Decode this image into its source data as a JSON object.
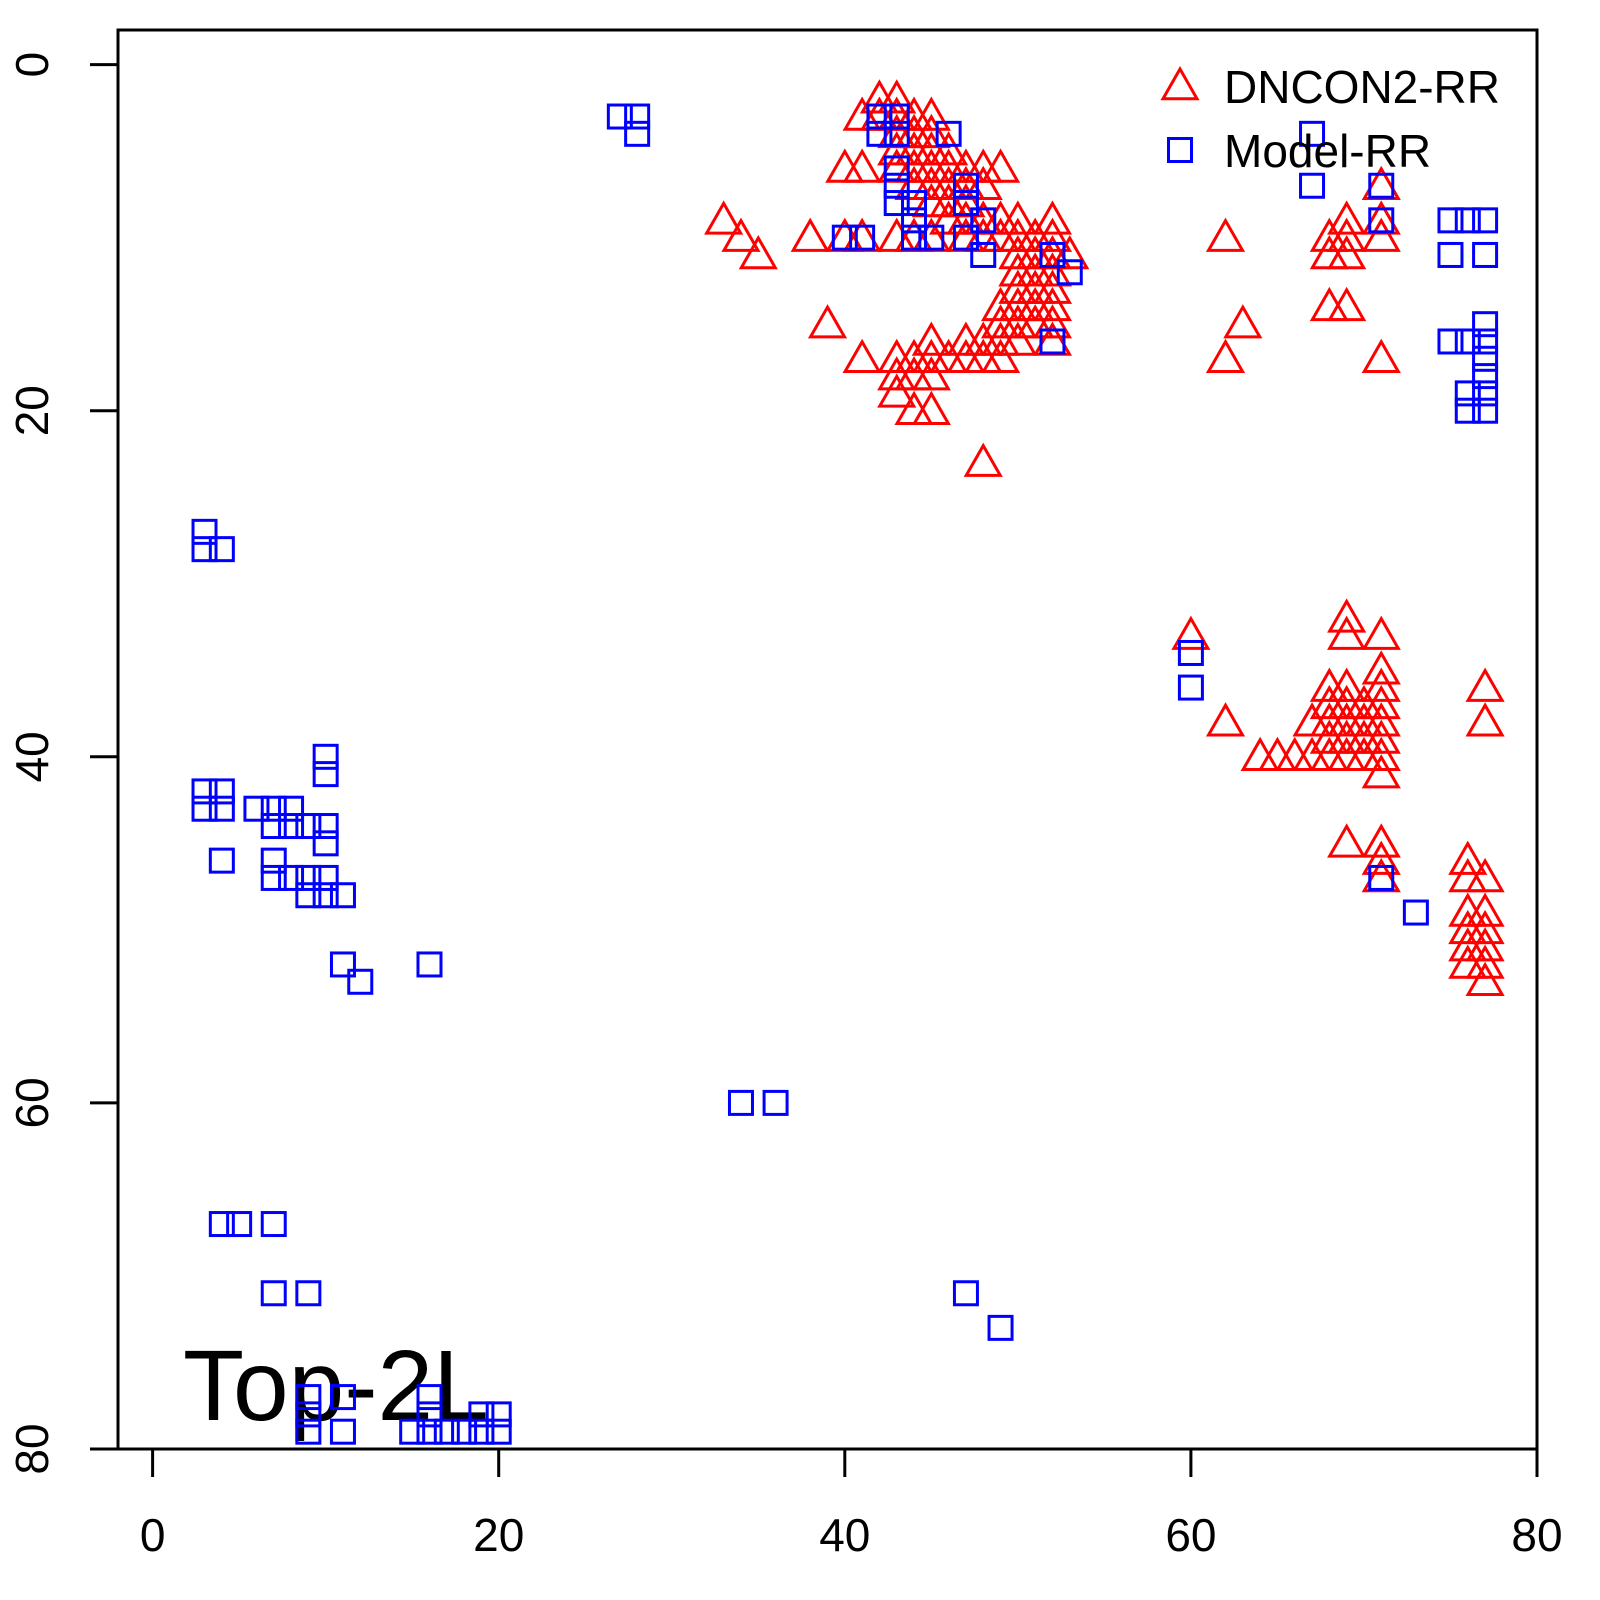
{
  "chart_data": {
    "type": "scatter",
    "annotation": "Top-2L",
    "xlim": [
      -2,
      80
    ],
    "ylim": [
      -2,
      80
    ],
    "y_reversed": true,
    "xticks": [
      0,
      20,
      40,
      60,
      80
    ],
    "yticks": [
      0,
      20,
      40,
      60,
      80
    ],
    "legend": "topright",
    "series": [
      {
        "name": "DNCON2-RR",
        "color": "#ff0000",
        "marker": "triangle",
        "x": [
          42,
          43,
          41,
          42,
          43,
          44,
          45,
          43,
          44,
          45,
          43,
          44,
          45,
          46,
          40,
          41,
          43,
          44,
          45,
          46,
          47,
          48,
          49,
          44,
          45,
          46,
          47,
          48,
          45,
          46,
          47,
          33,
          46,
          47,
          48,
          49,
          50,
          52,
          34,
          38,
          40,
          41,
          43,
          44,
          45,
          47,
          48,
          49,
          50,
          51,
          52,
          35,
          50,
          51,
          52,
          53,
          50,
          51,
          52,
          50,
          51,
          52,
          49,
          50,
          51,
          52,
          39,
          49,
          50,
          51,
          52,
          45,
          47,
          48,
          49,
          50,
          52,
          41,
          43,
          44,
          45,
          46,
          47,
          48,
          49,
          43,
          44,
          45,
          43,
          44,
          45,
          48,
          62,
          63,
          62,
          68,
          69,
          69,
          68,
          69,
          71,
          71,
          71,
          68,
          69,
          71,
          60,
          62,
          69,
          69,
          71,
          71,
          71,
          68,
          69,
          68,
          69,
          70,
          71,
          67,
          68,
          69,
          70,
          71,
          68,
          69,
          70,
          71,
          64,
          65,
          66,
          67,
          68,
          69,
          70,
          71,
          71,
          77,
          77,
          69,
          71,
          71,
          71,
          76,
          76,
          77,
          76,
          77,
          76,
          77,
          76,
          77,
          76,
          77,
          77
        ],
        "y": [
          2,
          2,
          3,
          3,
          3,
          3,
          3,
          4,
          4,
          4,
          5,
          5,
          5,
          5,
          6,
          6,
          6,
          6,
          6,
          6,
          6,
          6,
          6,
          7,
          7,
          7,
          7,
          7,
          8,
          8,
          8,
          9,
          9,
          9,
          9,
          9,
          9,
          9,
          10,
          10,
          10,
          10,
          10,
          10,
          10,
          10,
          10,
          10,
          10,
          10,
          10,
          11,
          11,
          11,
          11,
          11,
          12,
          12,
          12,
          13,
          13,
          13,
          14,
          14,
          14,
          14,
          15,
          15,
          15,
          15,
          15,
          16,
          16,
          16,
          16,
          16,
          16,
          17,
          17,
          17,
          17,
          17,
          17,
          17,
          17,
          18,
          18,
          18,
          19,
          20,
          20,
          23,
          10,
          15,
          17,
          10,
          9,
          10,
          11,
          11,
          7,
          9,
          10,
          14,
          14,
          17,
          33,
          38,
          32,
          33,
          33,
          35,
          36,
          36,
          36,
          37,
          37,
          37,
          37,
          38,
          38,
          38,
          38,
          38,
          39,
          39,
          39,
          39,
          40,
          40,
          40,
          40,
          40,
          40,
          40,
          40,
          41,
          36,
          38,
          45,
          45,
          46,
          47,
          46,
          47,
          47,
          49,
          49,
          50,
          50,
          51,
          51,
          52,
          52,
          53
        ]
      },
      {
        "name": "Model-RR",
        "color": "#0000ff",
        "marker": "square",
        "x": [
          27,
          28,
          28,
          42,
          43,
          42,
          43,
          46,
          43,
          43,
          43,
          44,
          44,
          47,
          47,
          47,
          40,
          41,
          44,
          45,
          48,
          48,
          52,
          53,
          52,
          67,
          67,
          71,
          71,
          75,
          76,
          77,
          75,
          77,
          77,
          75,
          76,
          77,
          77,
          77,
          76,
          77,
          76,
          77,
          60,
          60,
          71,
          73,
          3,
          3,
          4,
          10,
          10,
          3,
          4,
          3,
          4,
          6,
          7,
          8,
          7,
          8,
          9,
          10,
          10,
          4,
          7,
          7,
          8,
          9,
          10,
          9,
          10,
          11,
          11,
          12,
          16,
          34,
          36,
          4,
          5,
          7,
          7,
          9,
          47,
          49,
          9,
          11,
          16,
          9,
          16,
          19,
          20,
          9,
          11,
          15,
          16,
          17,
          18,
          19,
          20
        ],
        "y": [
          3,
          3,
          4,
          3,
          3,
          4,
          4,
          4,
          6,
          7,
          8,
          8,
          9,
          7,
          8,
          10,
          10,
          10,
          10,
          10,
          9,
          11,
          11,
          12,
          16,
          4,
          7,
          7,
          9,
          9,
          9,
          9,
          11,
          11,
          15,
          16,
          16,
          16,
          17,
          18,
          19,
          19,
          20,
          20,
          34,
          36,
          47,
          49,
          27,
          28,
          28,
          40,
          41,
          42,
          42,
          43,
          43,
          43,
          43,
          43,
          44,
          44,
          44,
          44,
          45,
          46,
          46,
          47,
          47,
          47,
          47,
          48,
          48,
          48,
          52,
          53,
          52,
          60,
          60,
          67,
          67,
          67,
          71,
          71,
          71,
          73,
          77,
          77,
          77,
          78,
          78,
          78,
          78,
          79,
          79,
          79,
          79,
          79,
          79,
          79,
          79
        ]
      }
    ]
  }
}
